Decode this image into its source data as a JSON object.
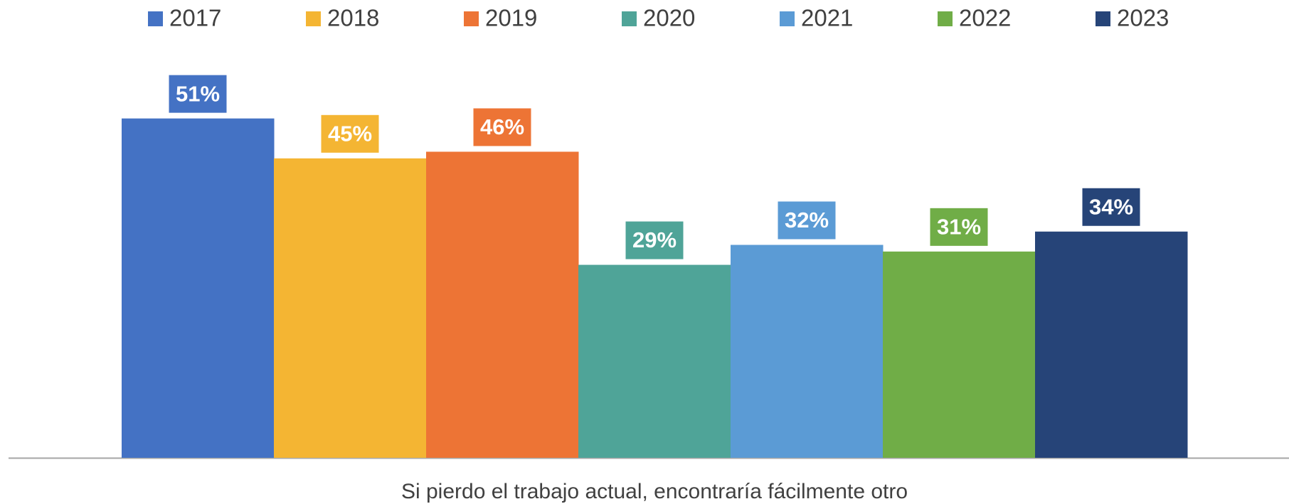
{
  "chart_data": {
    "type": "bar",
    "categories": [
      "Si pierdo el trabajo actual, encontraría fácilmente otro"
    ],
    "series": [
      {
        "name": "2017",
        "color": "#4472c4",
        "values": [
          51
        ],
        "value_labels": [
          "51%"
        ]
      },
      {
        "name": "2018",
        "color": "#f4b533",
        "values": [
          45
        ],
        "value_labels": [
          "45%"
        ]
      },
      {
        "name": "2019",
        "color": "#ed7435",
        "values": [
          46
        ],
        "value_labels": [
          "46%"
        ]
      },
      {
        "name": "2020",
        "color": "#4fa498",
        "values": [
          29
        ],
        "value_labels": [
          "29%"
        ]
      },
      {
        "name": "2021",
        "color": "#5b9bd5",
        "values": [
          32
        ],
        "value_labels": [
          "32%"
        ]
      },
      {
        "name": "2022",
        "color": "#70ad47",
        "values": [
          31
        ],
        "value_labels": [
          "31%"
        ]
      },
      {
        "name": "2023",
        "color": "#264478",
        "values": [
          34
        ],
        "value_labels": [
          "34%"
        ]
      }
    ],
    "legend": "top"
  }
}
